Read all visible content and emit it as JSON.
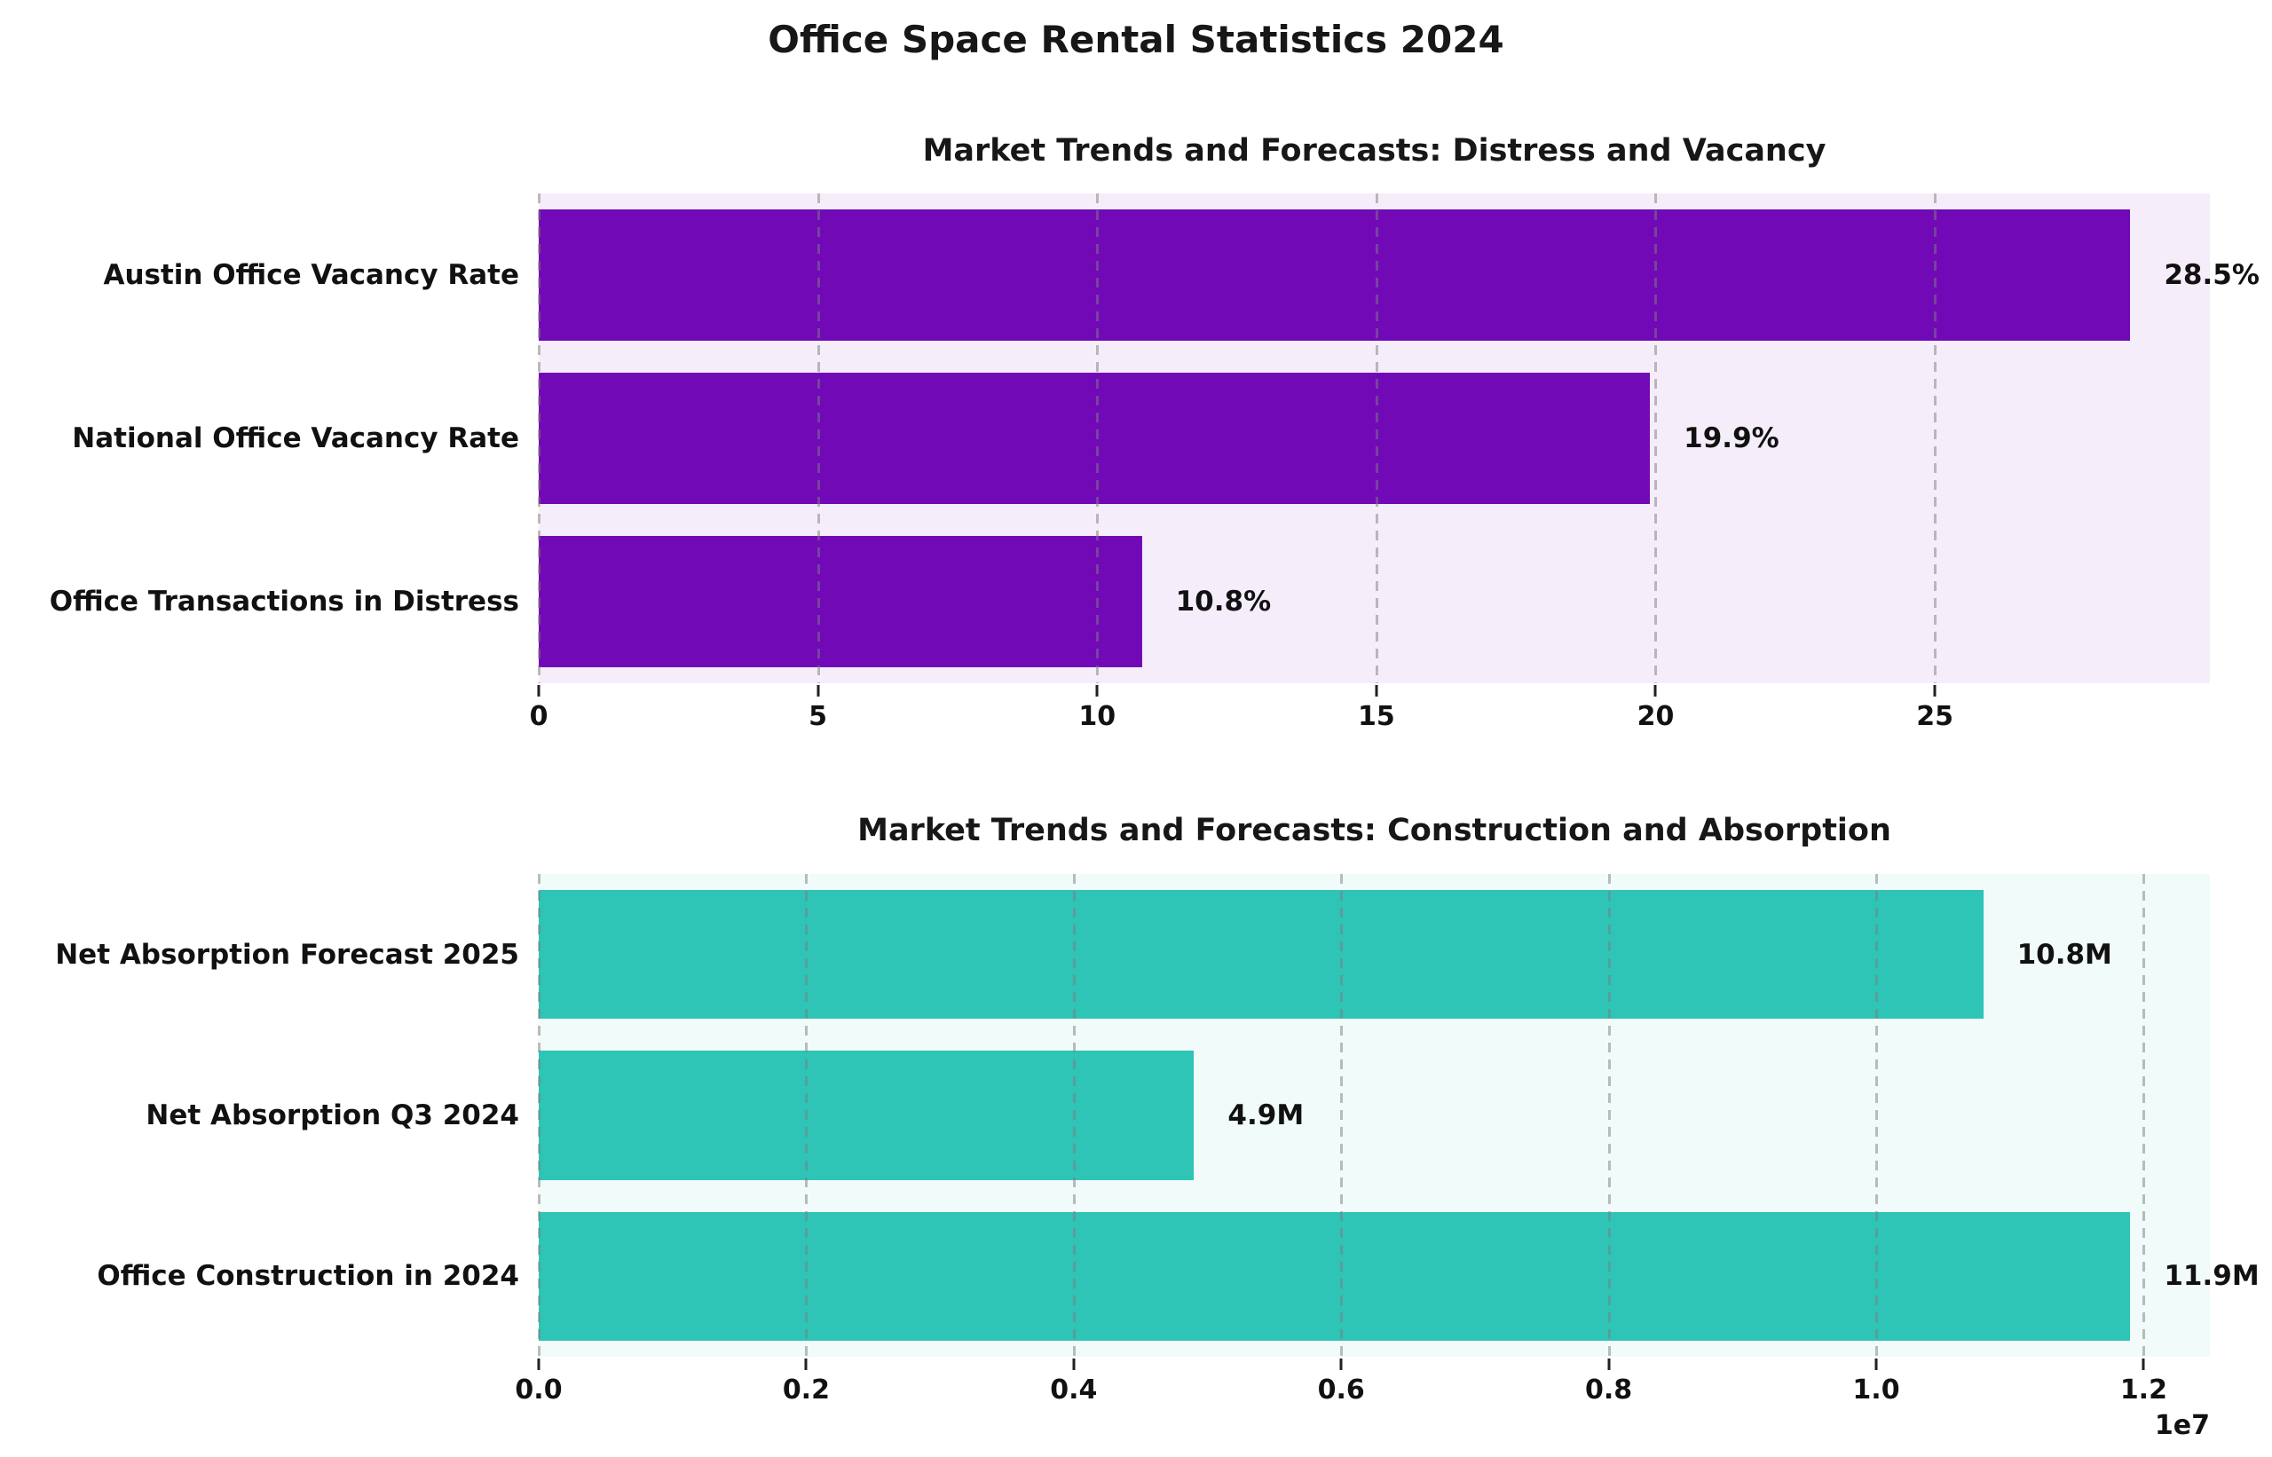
{
  "figure_title": "Office Space Rental Statistics 2024",
  "text_color": "#111111",
  "grid_color": "#7d7d7d",
  "chart_data": [
    {
      "type": "bar",
      "orientation": "horizontal",
      "title": "Market Trends and Forecasts: Distress and Vacancy",
      "categories": [
        "Austin Office Vacancy Rate",
        "National Office Vacancy Rate",
        "Office Transactions in Distress"
      ],
      "values": [
        28.5,
        19.9,
        10.8
      ],
      "value_labels": [
        "28.5%",
        "19.9%",
        "10.8%"
      ],
      "xlabel": "",
      "ylabel": "",
      "xlim": [
        0,
        29.925
      ],
      "xticks": [
        0,
        5,
        10,
        15,
        20,
        25
      ],
      "xtick_labels": [
        "0",
        "5",
        "10",
        "15",
        "20",
        "25"
      ],
      "x_offset_label": "",
      "grid": true,
      "legend": false,
      "bar_color": "#7209B7",
      "plot_bg": "#F5EEFA"
    },
    {
      "type": "bar",
      "orientation": "horizontal",
      "title": "Market Trends and Forecasts: Construction and Absorption",
      "categories": [
        "Net Absorption Forecast 2025",
        "Net Absorption Q3 2024",
        "Office Construction in 2024"
      ],
      "values": [
        10800000,
        4900000,
        11900000
      ],
      "value_labels": [
        "10.8M",
        "4.9M",
        "11.9M"
      ],
      "xlabel": "",
      "ylabel": "",
      "xlim": [
        0,
        12495000
      ],
      "xticks": [
        0,
        2000000,
        4000000,
        6000000,
        8000000,
        10000000,
        12000000
      ],
      "xtick_labels": [
        "0.0",
        "0.2",
        "0.4",
        "0.6",
        "0.8",
        "1.0",
        "1.2"
      ],
      "x_offset_label": "1e7",
      "grid": true,
      "legend": false,
      "bar_color": "#2EC4B6",
      "plot_bg": "#F0FBFA"
    }
  ]
}
